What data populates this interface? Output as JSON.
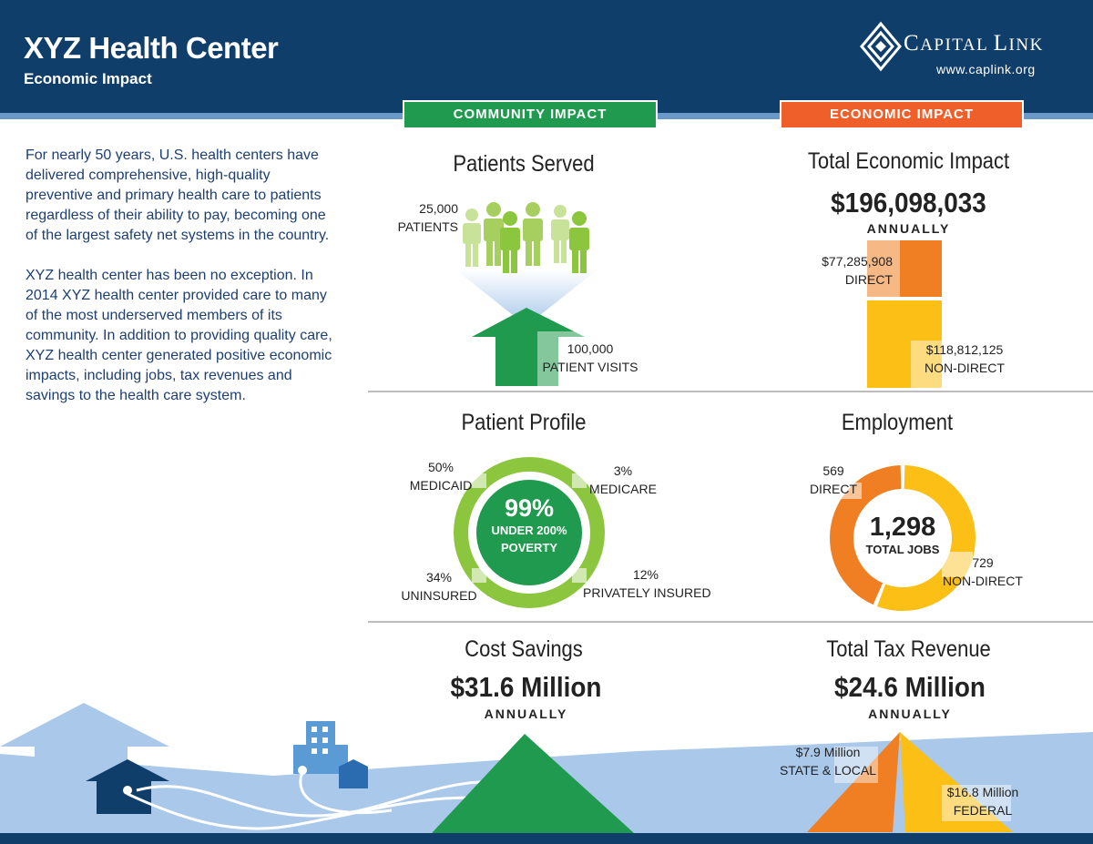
{
  "header": {
    "title": "XYZ Health Center",
    "subtitle": "Economic Impact",
    "logo": {
      "name_cap1": "C",
      "name_rest1": "APITAL ",
      "name_cap2": "L",
      "name_rest2": "INK",
      "url": "www.caplink.org"
    }
  },
  "tabs": {
    "community": "COMMUNITY IMPACT",
    "economic": "ECONOMIC IMPACT"
  },
  "intro": {
    "p1": "For nearly 50 years, U.S. health centers have delivered comprehensive, high-quality preventive and primary health care to patients regardless of their ability to pay, becoming one of the largest safety net systems in the country.",
    "p2": "XYZ health center has been no exception. In 2014 XYZ health center provided care to many of the most underserved members of its community. In addition to providing quality care, XYZ health center generated positive economic impacts, including jobs, tax revenues and savings to the health care system."
  },
  "patients_served": {
    "title": "Patients Served",
    "patients_value": "25,000",
    "patients_label": "PATIENTS",
    "visits_value": "100,000",
    "visits_label": "PATIENT VISITS"
  },
  "total_economic_impact": {
    "title": "Total Economic Impact",
    "value": "$196,098,033",
    "period": "ANNUALLY",
    "direct_value": "$77,285,908",
    "direct_label": "DIRECT",
    "nondirect_value": "$118,812,125",
    "nondirect_label": "NON-DIRECT",
    "direct_amount": 77285908,
    "nondirect_amount": 118812125
  },
  "patient_profile": {
    "title": "Patient Profile",
    "center_value": "99%",
    "center_line1": "UNDER 200%",
    "center_line2": "POVERTY",
    "medicaid_value": "50%",
    "medicaid_label": "MEDICAID",
    "medicare_value": "3%",
    "medicare_label": "MEDICARE",
    "uninsured_value": "34%",
    "uninsured_label": "UNINSURED",
    "private_value": "12%",
    "private_label": "PRIVATELY INSURED"
  },
  "employment": {
    "title": "Employment",
    "total_value": "1,298",
    "total_label": "TOTAL JOBS",
    "direct_value": "569",
    "direct_label": "DIRECT",
    "nondirect_value": "729",
    "nondirect_label": "NON-DIRECT",
    "direct_count": 569,
    "nondirect_count": 729
  },
  "cost_savings": {
    "title": "Cost Savings",
    "value": "$31.6 Million",
    "period": "ANNUALLY"
  },
  "tax_revenue": {
    "title": "Total Tax Revenue",
    "value": "$24.6 Million",
    "period": "ANNUALLY",
    "state_value": "$7.9 Million",
    "state_label": "STATE & LOCAL",
    "federal_value": "$16.8 Million",
    "federal_label": "FEDERAL"
  },
  "colors": {
    "navy": "#0f3e6b",
    "green": "#1f9a4e",
    "light_green": "#8cc63f",
    "orange": "#ef7f22",
    "red_orange": "#ef5f2a",
    "yellow": "#fbbf16",
    "sky": "#a9c8ea"
  }
}
